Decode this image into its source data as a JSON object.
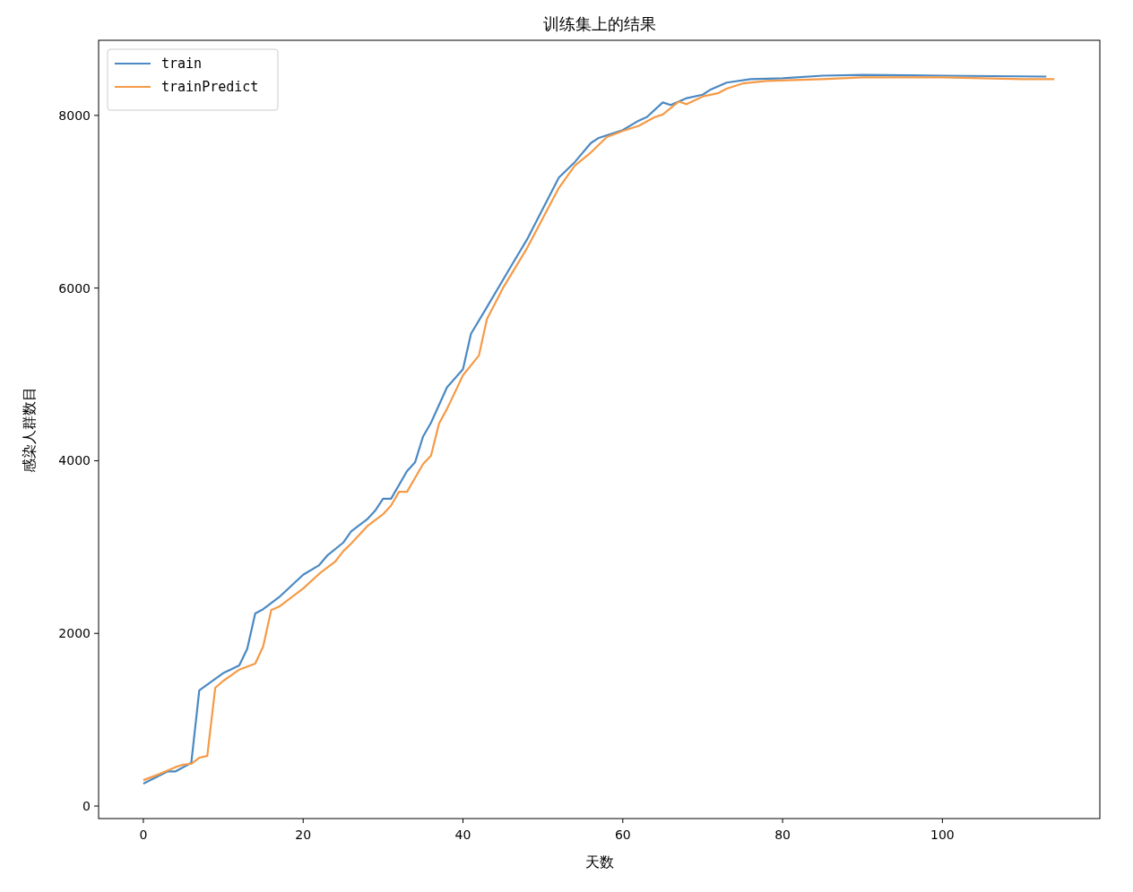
{
  "chart_data": {
    "type": "line",
    "title": "训练集上的结果",
    "xlabel": "天数",
    "ylabel": "感染人群数目",
    "xlim": [
      -5.6,
      119.7
    ],
    "ylim": [
      -145,
      8870
    ],
    "xticks": [
      0,
      20,
      40,
      60,
      80,
      100
    ],
    "yticks": [
      0,
      2000,
      4000,
      6000,
      8000
    ],
    "grid": false,
    "legend": "top left",
    "series": [
      {
        "name": "train",
        "color": "#4a89c3",
        "x": [
          0,
          3,
          4,
          6,
          7,
          10,
          12,
          13,
          14,
          15,
          17,
          20,
          22,
          23,
          25,
          26,
          28,
          29,
          30,
          31,
          33,
          34,
          35,
          36,
          38,
          40,
          41,
          43,
          46,
          48,
          50,
          52,
          54,
          56,
          57,
          60,
          62,
          63,
          65,
          66,
          68,
          70,
          71,
          73,
          76,
          80,
          85,
          90,
          100,
          113
        ],
        "values": [
          260,
          400,
          400,
          500,
          1340,
          1540,
          1630,
          1820,
          2230,
          2280,
          2420,
          2680,
          2790,
          2900,
          3050,
          3180,
          3320,
          3420,
          3560,
          3560,
          3880,
          3980,
          4280,
          4440,
          4850,
          5060,
          5470,
          5780,
          6250,
          6560,
          6920,
          7280,
          7460,
          7680,
          7740,
          7830,
          7940,
          7980,
          8150,
          8120,
          8200,
          8240,
          8300,
          8380,
          8420,
          8430,
          8460,
          8470,
          8460,
          8450
        ]
      },
      {
        "name": "trainPredict",
        "color": "#f59a46",
        "x": [
          0,
          2,
          4,
          5,
          6,
          7,
          8,
          9,
          10,
          12,
          14,
          15,
          16,
          17,
          20,
          22,
          24,
          25,
          26,
          28,
          30,
          31,
          32,
          33,
          35,
          36,
          37,
          38,
          40,
          42,
          43,
          45,
          48,
          50,
          52,
          54,
          56,
          58,
          60,
          62,
          64,
          65,
          67,
          68,
          70,
          72,
          73,
          75,
          78,
          85,
          90,
          100,
          110,
          114
        ],
        "values": [
          300,
          370,
          450,
          480,
          490,
          560,
          580,
          1370,
          1450,
          1580,
          1650,
          1850,
          2270,
          2310,
          2520,
          2690,
          2830,
          2950,
          3040,
          3240,
          3380,
          3480,
          3640,
          3640,
          3960,
          4060,
          4430,
          4600,
          4990,
          5220,
          5640,
          6000,
          6460,
          6810,
          7160,
          7420,
          7570,
          7750,
          7820,
          7880,
          7980,
          8010,
          8160,
          8130,
          8220,
          8260,
          8310,
          8370,
          8400,
          8420,
          8440,
          8440,
          8420,
          8420
        ]
      }
    ]
  }
}
